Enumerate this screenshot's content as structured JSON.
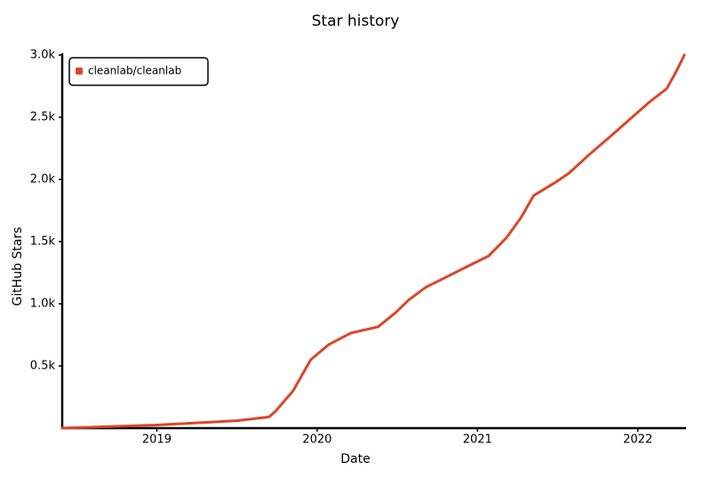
{
  "chart_data": {
    "type": "line",
    "title": "Star history",
    "x_label": "Date",
    "y_label": "GitHub Stars",
    "x": [
      2018.41,
      2018.6,
      2019.0,
      2019.5,
      2019.7,
      2019.74,
      2019.85,
      2019.96,
      2020.07,
      2020.21,
      2020.38,
      2020.49,
      2020.57,
      2020.68,
      2020.79,
      2020.96,
      2021.07,
      2021.18,
      2021.27,
      2021.35,
      2021.49,
      2021.57,
      2021.68,
      2021.85,
      2022.07,
      2022.18,
      2022.24,
      2022.29
    ],
    "series": [
      {
        "name": "cleanlab/cleanlab",
        "color": "#dd4528",
        "values": [
          0,
          8,
          25,
          60,
          90,
          135,
          300,
          550,
          670,
          765,
          815,
          930,
          1030,
          1135,
          1205,
          1315,
          1385,
          1530,
          1690,
          1870,
          1980,
          2050,
          2180,
          2370,
          2620,
          2730,
          2870,
          3000
        ]
      }
    ],
    "xlim": [
      2018.41,
      2022.29
    ],
    "xticks": [
      2019,
      2020,
      2021,
      2022
    ],
    "ylim": [
      0,
      3000
    ],
    "yticks": [
      {
        "value": 500,
        "label": "0.5k"
      },
      {
        "value": 1000,
        "label": "1.0k"
      },
      {
        "value": 1500,
        "label": "1.5k"
      },
      {
        "value": 2000,
        "label": "2.0k"
      },
      {
        "value": 2500,
        "label": "2.5k"
      },
      {
        "value": 3000,
        "label": "3.0k"
      }
    ],
    "legend": "top-left"
  }
}
